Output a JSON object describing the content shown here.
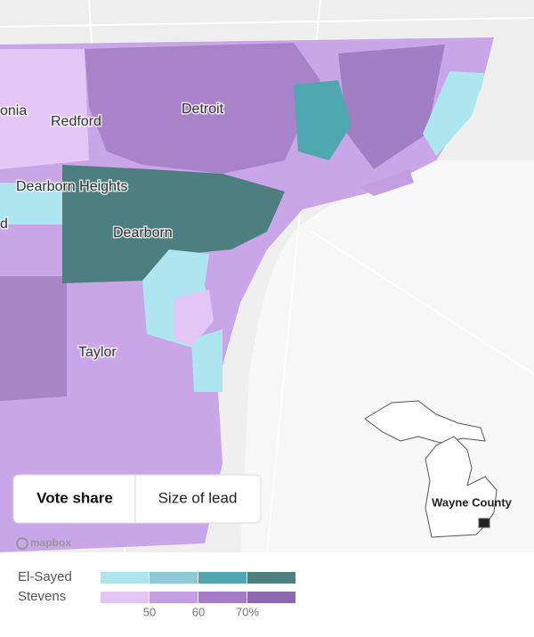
{
  "map": {
    "labels": [
      "onia",
      "Redford",
      "Detroit",
      "Dearborn Heights",
      "d",
      "Dearborn",
      "Taylor"
    ]
  },
  "toggle": {
    "options": [
      "Vote share",
      "Size of lead"
    ]
  },
  "inset": {
    "label": "Wayne County"
  },
  "attribution": "mapbox",
  "legend": {
    "rows": [
      {
        "name": "El-Sayed",
        "colors": [
          "#aee6ef",
          "#8ccbd6",
          "#4fa8b0",
          "#4d7e80"
        ]
      },
      {
        "name": "Stevens",
        "colors": [
          "#e3c6f5",
          "#c39ee0",
          "#a57dc7",
          "#8c68ad"
        ]
      }
    ],
    "ticks": [
      "50",
      "60",
      "70%"
    ]
  }
}
